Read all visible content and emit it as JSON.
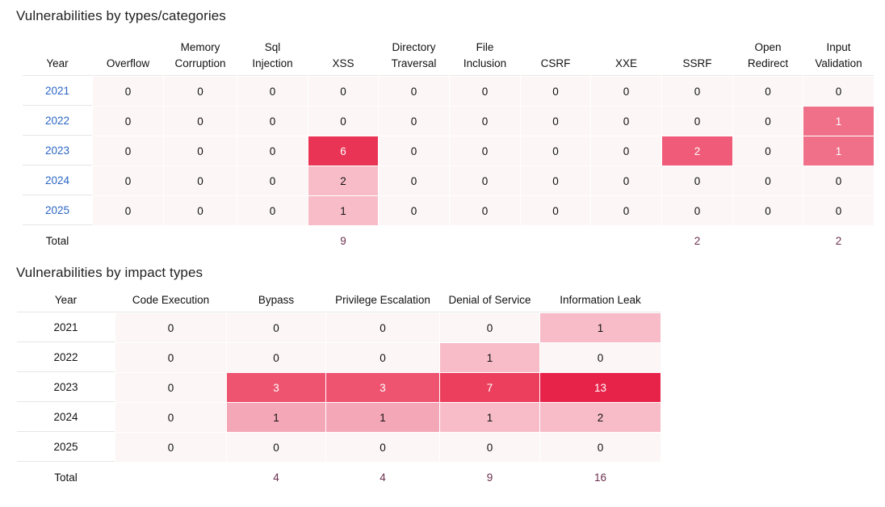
{
  "section1": {
    "title": "Vulnerabilities by types/categories",
    "year_header": "Year",
    "columns": [
      [
        "Overflow"
      ],
      [
        "Memory",
        "Corruption"
      ],
      [
        "Sql",
        "Injection"
      ],
      [
        "XSS"
      ],
      [
        "Directory",
        "Traversal"
      ],
      [
        "File",
        "Inclusion"
      ],
      [
        "CSRF"
      ],
      [
        "XXE"
      ],
      [
        "SSRF"
      ],
      [
        "Open",
        "Redirect"
      ],
      [
        "Input",
        "Validation"
      ]
    ],
    "rows": [
      {
        "year": "2021",
        "values": [
          "0",
          "0",
          "0",
          "0",
          "0",
          "0",
          "0",
          "0",
          "0",
          "0",
          "0"
        ]
      },
      {
        "year": "2022",
        "values": [
          "0",
          "0",
          "0",
          "0",
          "0",
          "0",
          "0",
          "0",
          "0",
          "0",
          "1"
        ]
      },
      {
        "year": "2023",
        "values": [
          "0",
          "0",
          "0",
          "6",
          "0",
          "0",
          "0",
          "0",
          "2",
          "0",
          "1"
        ]
      },
      {
        "year": "2024",
        "values": [
          "0",
          "0",
          "0",
          "2",
          "0",
          "0",
          "0",
          "0",
          "0",
          "0",
          "0"
        ]
      },
      {
        "year": "2025",
        "values": [
          "0",
          "0",
          "0",
          "1",
          "0",
          "0",
          "0",
          "0",
          "0",
          "0",
          "0"
        ]
      }
    ],
    "total_label": "Total",
    "totals": [
      "",
      "",
      "",
      "9",
      "",
      "",
      "",
      "",
      "2",
      "",
      "2"
    ]
  },
  "section2": {
    "title": "Vulnerabilities by impact types",
    "year_header": "Year",
    "columns": [
      "Code Execution",
      "Bypass",
      "Privilege Escalation",
      "Denial of Service",
      "Information Leak"
    ],
    "rows": [
      {
        "year": "2021",
        "values": [
          "0",
          "0",
          "0",
          "0",
          "1"
        ]
      },
      {
        "year": "2022",
        "values": [
          "0",
          "0",
          "0",
          "1",
          "0"
        ]
      },
      {
        "year": "2023",
        "values": [
          "0",
          "3",
          "3",
          "7",
          "13"
        ]
      },
      {
        "year": "2024",
        "values": [
          "0",
          "1",
          "1",
          "1",
          "2"
        ]
      },
      {
        "year": "2025",
        "values": [
          "0",
          "0",
          "0",
          "0",
          "0"
        ]
      }
    ],
    "total_label": "Total",
    "totals": [
      "",
      "4",
      "4",
      "9",
      "16"
    ]
  },
  "colors": {
    "zero_cell": "#fcf6f6",
    "heat_1_of_6": "#f7bcc8",
    "heat_high_1": "#f07089",
    "heat_6": "#ea3455",
    "heat_2_of_6": "#f7bcc8",
    "heat_2_ssrf": "#ef5b78",
    "impact_scale": [
      "#f7bcc8",
      "#f4a7b6",
      "#ee5470",
      "#ec3f5d",
      "#e8234a"
    ],
    "year_link": "#2a66c4",
    "total_value": "#6b2f4e"
  }
}
